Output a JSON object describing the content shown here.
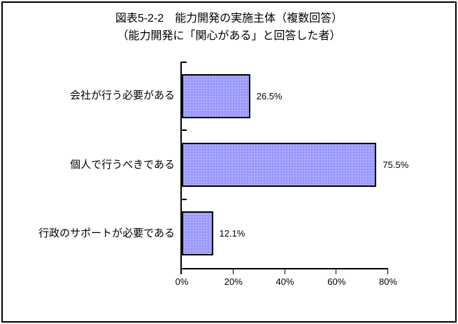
{
  "window": {
    "background": "#ffffff",
    "frame_border_color": "#000000"
  },
  "chart_data": {
    "type": "bar",
    "orientation": "horizontal",
    "title": "図表5-2-2　能力開発の実施主体（複数回答）",
    "subtitle": "（能力開発に「関心がある」と回答した者）",
    "categories": [
      "会社が行う必要がある",
      "個人で行うべきである",
      "行政のサポートが必要である"
    ],
    "values": [
      26.5,
      75.5,
      12.1
    ],
    "value_labels": [
      "26.5%",
      "75.5%",
      "12.1%"
    ],
    "x_tick_labels": [
      "0%",
      "20%",
      "40%",
      "60%",
      "80%"
    ],
    "x_tick_values": [
      0,
      20,
      40,
      60,
      80
    ],
    "xlim": [
      0,
      80
    ],
    "bar_color": "#9999ff",
    "bar_border_color": "#000000",
    "axis_color": "#000000",
    "grid": false,
    "legend": false
  }
}
